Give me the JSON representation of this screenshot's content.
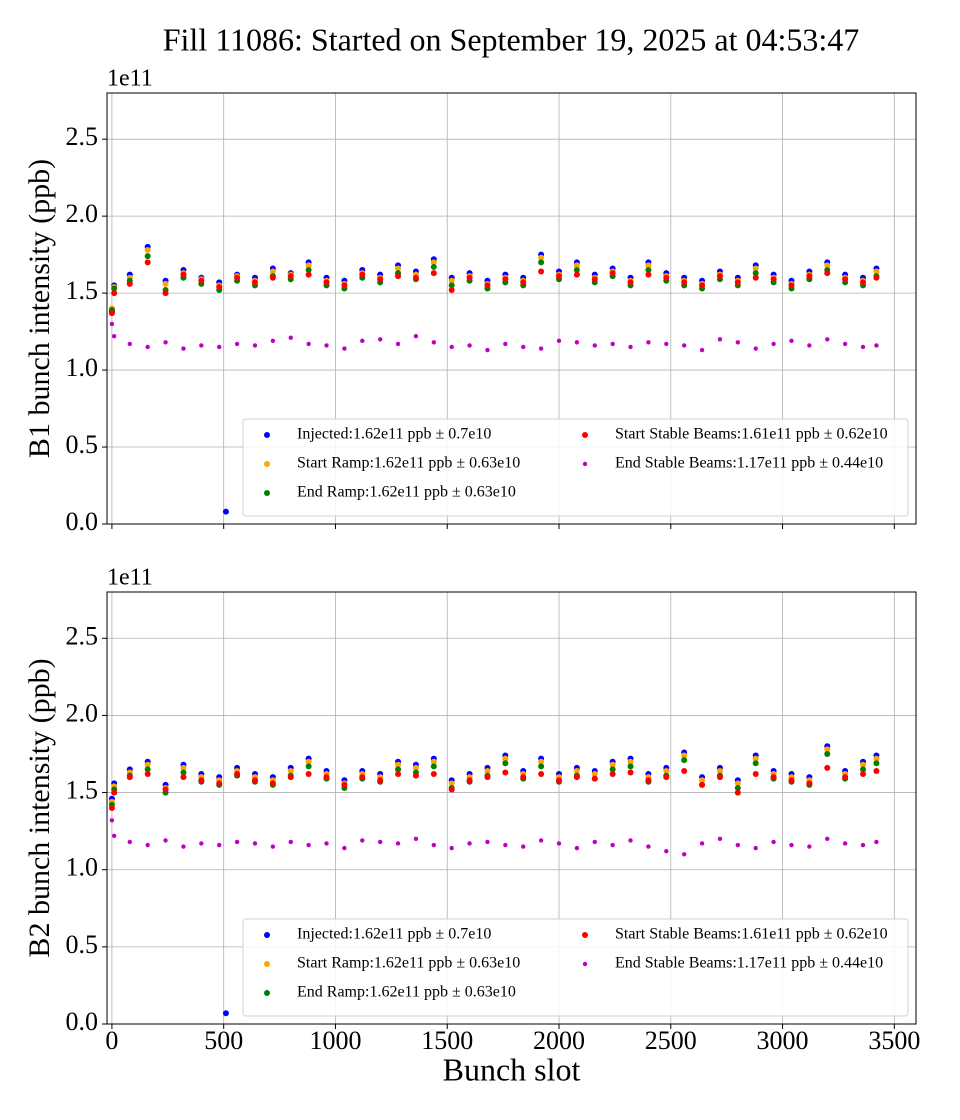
{
  "title": "Fill 11086: Started on September 19, 2025 at 04:53:47",
  "chart_data": [
    {
      "type": "scatter",
      "ylabel": "B1 bunch intensity (ppb)",
      "y_offset_label": "1e11",
      "xlim": [
        -22,
        3597
      ],
      "ylim": [
        0,
        2.8
      ],
      "xticks": [
        0,
        500,
        1000,
        1500,
        2000,
        2500,
        3000,
        3500
      ],
      "yticks": [
        {
          "value": 0,
          "label": "0.0"
        },
        {
          "value": 0.5,
          "label": "0.5"
        },
        {
          "value": 1,
          "label": "1.0"
        },
        {
          "value": 1.5,
          "label": "1.5"
        },
        {
          "value": 2,
          "label": "2.0"
        },
        {
          "value": 2.5,
          "label": "2.5"
        }
      ],
      "grid": true,
      "legend_loc": "lower right",
      "legend_ncol": 2,
      "x": [
        0,
        10,
        80,
        160,
        240,
        320,
        400,
        480,
        510,
        560,
        640,
        720,
        800,
        880,
        960,
        1040,
        1120,
        1200,
        1280,
        1360,
        1440,
        1520,
        1600,
        1680,
        1760,
        1840,
        1920,
        2000,
        2080,
        2160,
        2240,
        2320,
        2400,
        2480,
        2560,
        2640,
        2720,
        2800,
        2880,
        2960,
        3040,
        3120,
        3200,
        3280,
        3360,
        3420
      ],
      "series": [
        {
          "name": "Injected:1.62e11 ppb ± 0.7e10",
          "color": "#0000ff",
          "values": [
            1.38,
            1.55,
            1.62,
            1.8,
            1.58,
            1.65,
            1.6,
            1.57,
            0.08,
            1.62,
            1.6,
            1.66,
            1.63,
            1.7,
            1.6,
            1.58,
            1.65,
            1.62,
            1.68,
            1.64,
            1.72,
            1.6,
            1.63,
            1.58,
            1.62,
            1.6,
            1.75,
            1.64,
            1.7,
            1.62,
            1.66,
            1.6,
            1.7,
            1.63,
            1.6,
            1.58,
            1.64,
            1.6,
            1.68,
            1.62,
            1.58,
            1.64,
            1.7,
            1.62,
            1.6,
            1.66
          ]
        },
        {
          "name": "Start Ramp:1.62e11 ppb ± 0.63e10",
          "color": "#ffa500",
          "values": [
            1.4,
            1.54,
            1.6,
            1.78,
            1.56,
            1.63,
            1.59,
            1.55,
            null,
            1.61,
            1.58,
            1.64,
            1.62,
            1.68,
            1.58,
            1.56,
            1.63,
            1.6,
            1.66,
            1.62,
            1.7,
            1.58,
            1.61,
            1.56,
            1.6,
            1.58,
            1.73,
            1.62,
            1.68,
            1.6,
            1.64,
            1.58,
            1.68,
            1.61,
            1.58,
            1.56,
            1.62,
            1.58,
            1.66,
            1.6,
            1.56,
            1.62,
            1.68,
            1.6,
            1.58,
            1.64
          ]
        },
        {
          "name": "End Ramp:1.62e11 ppb ± 0.63e10",
          "color": "#008000",
          "values": [
            1.39,
            1.53,
            1.58,
            1.74,
            1.52,
            1.6,
            1.56,
            1.52,
            null,
            1.58,
            1.55,
            1.61,
            1.59,
            1.65,
            1.55,
            1.53,
            1.6,
            1.57,
            1.63,
            1.59,
            1.67,
            1.55,
            1.58,
            1.53,
            1.57,
            1.55,
            1.7,
            1.59,
            1.65,
            1.57,
            1.61,
            1.55,
            1.65,
            1.58,
            1.55,
            1.53,
            1.59,
            1.55,
            1.63,
            1.57,
            1.53,
            1.59,
            1.65,
            1.57,
            1.55,
            1.61
          ]
        },
        {
          "name": "Start Stable Beams:1.61e11 ppb ± 0.62e10",
          "color": "#ff0000",
          "values": [
            1.37,
            1.5,
            1.56,
            1.7,
            1.5,
            1.62,
            1.58,
            1.54,
            null,
            1.6,
            1.57,
            1.6,
            1.61,
            1.62,
            1.57,
            1.55,
            1.62,
            1.59,
            1.61,
            1.6,
            1.63,
            1.52,
            1.6,
            1.55,
            1.59,
            1.57,
            1.64,
            1.61,
            1.62,
            1.59,
            1.63,
            1.57,
            1.62,
            1.6,
            1.57,
            1.55,
            1.61,
            1.57,
            1.6,
            1.59,
            1.55,
            1.61,
            1.63,
            1.59,
            1.57,
            1.6
          ]
        },
        {
          "name": "End Stable Beams:1.17e11 ppb ± 0.44e10",
          "color": "#bf00bf",
          "values": [
            1.3,
            1.22,
            1.17,
            1.15,
            1.18,
            1.14,
            1.16,
            1.15,
            null,
            1.17,
            1.16,
            1.19,
            1.21,
            1.17,
            1.16,
            1.14,
            1.19,
            1.2,
            1.17,
            1.22,
            1.18,
            1.15,
            1.16,
            1.13,
            1.17,
            1.15,
            1.14,
            1.19,
            1.18,
            1.16,
            1.17,
            1.15,
            1.18,
            1.17,
            1.16,
            1.13,
            1.2,
            1.18,
            1.14,
            1.17,
            1.19,
            1.16,
            1.2,
            1.17,
            1.15,
            1.16
          ]
        }
      ]
    },
    {
      "type": "scatter",
      "ylabel": "B2 bunch intensity (ppb)",
      "xlabel": "Bunch slot",
      "y_offset_label": "1e11",
      "xlim": [
        -22,
        3597
      ],
      "ylim": [
        0,
        2.8
      ],
      "xticks": [
        0,
        500,
        1000,
        1500,
        2000,
        2500,
        3000,
        3500
      ],
      "yticks": [
        {
          "value": 0,
          "label": "0.0"
        },
        {
          "value": 0.5,
          "label": "0.5"
        },
        {
          "value": 1,
          "label": "1.0"
        },
        {
          "value": 1.5,
          "label": "1.5"
        },
        {
          "value": 2,
          "label": "2.0"
        },
        {
          "value": 2.5,
          "label": "2.5"
        }
      ],
      "grid": true,
      "legend_loc": "lower right",
      "legend_ncol": 2,
      "x": [
        0,
        10,
        80,
        160,
        240,
        320,
        400,
        480,
        510,
        560,
        640,
        720,
        800,
        880,
        960,
        1040,
        1120,
        1200,
        1280,
        1360,
        1440,
        1520,
        1600,
        1680,
        1760,
        1840,
        1920,
        2000,
        2080,
        2160,
        2240,
        2320,
        2400,
        2480,
        2560,
        2640,
        2720,
        2800,
        2880,
        2960,
        3040,
        3120,
        3200,
        3280,
        3360,
        3420
      ],
      "series": [
        {
          "name": "Injected:1.62e11 ppb ± 0.7e10",
          "color": "#0000ff",
          "values": [
            1.46,
            1.56,
            1.65,
            1.7,
            1.55,
            1.68,
            1.62,
            1.6,
            0.07,
            1.66,
            1.62,
            1.6,
            1.66,
            1.72,
            1.64,
            1.58,
            1.64,
            1.62,
            1.7,
            1.68,
            1.72,
            1.58,
            1.62,
            1.66,
            1.74,
            1.64,
            1.72,
            1.62,
            1.66,
            1.64,
            1.7,
            1.72,
            1.62,
            1.66,
            1.76,
            1.6,
            1.66,
            1.58,
            1.74,
            1.64,
            1.62,
            1.6,
            1.8,
            1.64,
            1.7,
            1.74
          ]
        },
        {
          "name": "Start Ramp:1.62e11 ppb ± 0.63e10",
          "color": "#ffa500",
          "values": [
            1.44,
            1.54,
            1.63,
            1.68,
            1.53,
            1.66,
            1.6,
            1.58,
            null,
            1.64,
            1.6,
            1.58,
            1.64,
            1.7,
            1.62,
            1.56,
            1.62,
            1.6,
            1.68,
            1.66,
            1.7,
            1.56,
            1.6,
            1.64,
            1.72,
            1.62,
            1.7,
            1.6,
            1.64,
            1.62,
            1.68,
            1.7,
            1.6,
            1.64,
            1.74,
            1.58,
            1.64,
            1.56,
            1.72,
            1.62,
            1.6,
            1.58,
            1.78,
            1.62,
            1.68,
            1.72
          ]
        },
        {
          "name": "End Ramp:1.62e11 ppb ± 0.63e10",
          "color": "#008000",
          "values": [
            1.42,
            1.52,
            1.61,
            1.65,
            1.5,
            1.63,
            1.57,
            1.55,
            null,
            1.61,
            1.57,
            1.55,
            1.61,
            1.67,
            1.59,
            1.53,
            1.59,
            1.57,
            1.65,
            1.63,
            1.67,
            1.53,
            1.57,
            1.61,
            1.69,
            1.59,
            1.67,
            1.57,
            1.61,
            1.59,
            1.65,
            1.67,
            1.57,
            1.61,
            1.71,
            1.55,
            1.61,
            1.53,
            1.69,
            1.59,
            1.57,
            1.55,
            1.75,
            1.59,
            1.65,
            1.69
          ]
        },
        {
          "name": "Start Stable Beams:1.61e11 ppb ± 0.62e10",
          "color": "#ff0000",
          "values": [
            1.4,
            1.5,
            1.6,
            1.62,
            1.52,
            1.6,
            1.58,
            1.56,
            null,
            1.62,
            1.58,
            1.56,
            1.6,
            1.62,
            1.6,
            1.55,
            1.6,
            1.58,
            1.62,
            1.61,
            1.62,
            1.52,
            1.58,
            1.6,
            1.63,
            1.6,
            1.62,
            1.58,
            1.6,
            1.59,
            1.62,
            1.63,
            1.58,
            1.6,
            1.64,
            1.55,
            1.6,
            1.5,
            1.62,
            1.6,
            1.58,
            1.56,
            1.66,
            1.6,
            1.62,
            1.64
          ]
        },
        {
          "name": "End Stable Beams:1.17e11 ppb ± 0.44e10",
          "color": "#bf00bf",
          "values": [
            1.32,
            1.22,
            1.18,
            1.16,
            1.19,
            1.15,
            1.17,
            1.16,
            null,
            1.18,
            1.17,
            1.15,
            1.18,
            1.16,
            1.17,
            1.14,
            1.19,
            1.18,
            1.17,
            1.2,
            1.16,
            1.14,
            1.17,
            1.18,
            1.16,
            1.15,
            1.19,
            1.17,
            1.14,
            1.18,
            1.16,
            1.19,
            1.15,
            1.12,
            1.1,
            1.17,
            1.2,
            1.16,
            1.14,
            1.18,
            1.16,
            1.15,
            1.2,
            1.17,
            1.16,
            1.18
          ]
        }
      ]
    }
  ]
}
